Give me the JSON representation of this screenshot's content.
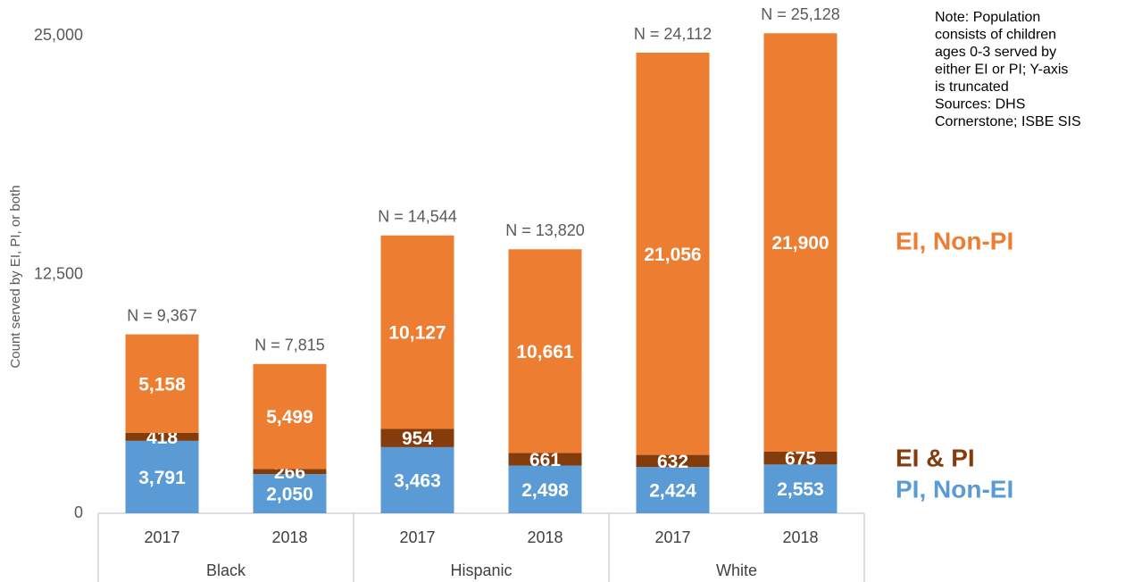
{
  "chart_data": {
    "type": "stacked_bar",
    "y_axis_label": "Count served by EI, PI, or both",
    "categories": [
      "2017",
      "2018",
      "2017",
      "2018",
      "2017",
      "2018"
    ],
    "groups": [
      "Black",
      "Hispanic",
      "White"
    ],
    "series": [
      {
        "name": "PI, Non-EI",
        "color": "#5b9bd5",
        "values": [
          3791,
          2050,
          3463,
          2498,
          2424,
          2553
        ],
        "value_labels": [
          "3,791",
          "2,050",
          "3,463",
          "2,498",
          "2,424",
          "2,553"
        ]
      },
      {
        "name": "EI & PI",
        "color": "#843c0c",
        "values": [
          418,
          266,
          954,
          661,
          632,
          675
        ],
        "value_labels": [
          "418",
          "266",
          "954",
          "661",
          "632",
          "675"
        ]
      },
      {
        "name": "EI, Non-PI",
        "color": "#ed7d31",
        "values": [
          5158,
          5499,
          10127,
          10661,
          21056,
          21900
        ],
        "value_labels": [
          "5,158",
          "5,499",
          "10,127",
          "10,661",
          "21,056",
          "21,900"
        ]
      }
    ],
    "total_labels": [
      "N = 9,367",
      "N = 7,815",
      "N = 14,544",
      "N = 13,820",
      "N = 24,112",
      "N = 25,128"
    ],
    "ylim": [
      0,
      25000
    ],
    "yticks": [
      0,
      {
        "value": 12500,
        "label": "12,500"
      },
      {
        "value": 25000,
        "label": "25,000"
      }
    ],
    "grid": false,
    "note": [
      "Note: Population",
      "consists of children",
      "ages 0-3 served by",
      "either EI or PI; Y-axis",
      "is truncated",
      "Sources: DHS",
      "Cornerstone; ISBE SIS"
    ]
  }
}
